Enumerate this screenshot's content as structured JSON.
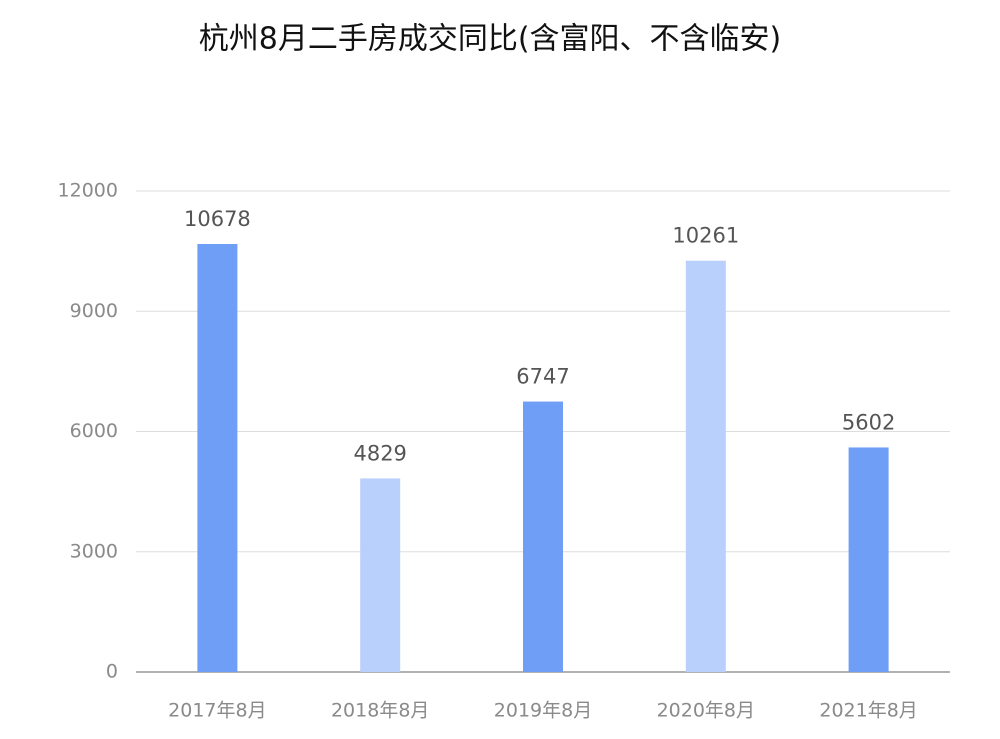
{
  "chart_data": {
    "type": "bar",
    "title": "杭州8月二手房成交同比(含富阳、不含临安)",
    "categories": [
      "2017年8月",
      "2018年8月",
      "2019年8月",
      "2020年8月",
      "2021年8月"
    ],
    "values": [
      10678,
      4829,
      6747,
      10261,
      5602
    ],
    "colors": [
      "#6e9ef6",
      "#b9cffc",
      "#6e9ef6",
      "#b9cffc",
      "#6e9ef6"
    ],
    "ylim": [
      0,
      12000
    ],
    "yticks": [
      0,
      3000,
      6000,
      9000,
      12000
    ],
    "grid": true
  }
}
